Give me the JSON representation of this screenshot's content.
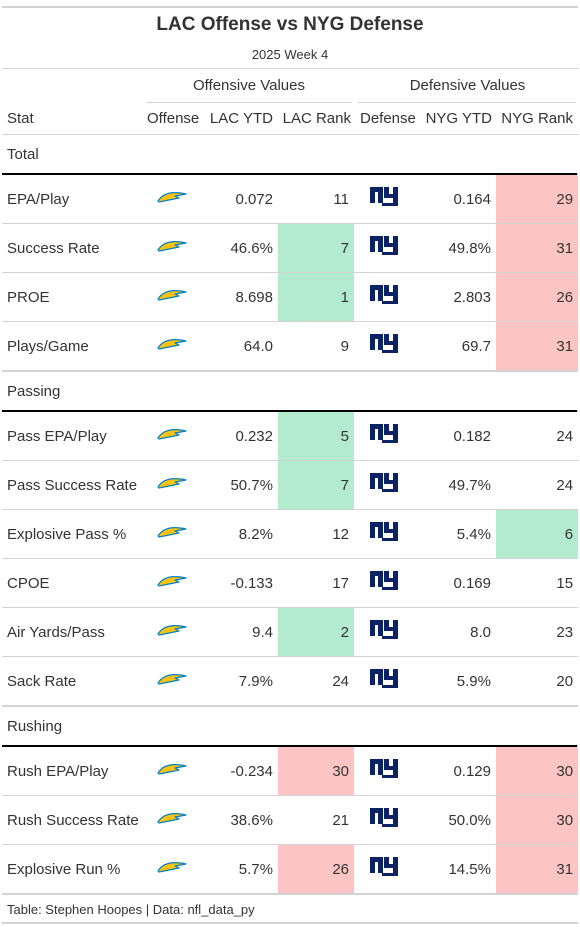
{
  "title": "LAC Offense vs NYG Defense",
  "subtitle": "2025 Week 4",
  "spanners": {
    "offense": "Offensive Values",
    "defense": "Defensive Values"
  },
  "columns": {
    "stat": "Stat",
    "offense": "Offense",
    "lac_ytd": "LAC YTD",
    "lac_rank": "LAC Rank",
    "defense": "Defense",
    "nyg_ytd": "NYG YTD",
    "nyg_rank": "NYG Rank"
  },
  "logos": {
    "offense": "chargers-bolt-icon",
    "defense": "giants-ny-logo-icon",
    "bolt_color": "#ffc20e",
    "bolt_outline": "#0080c6",
    "ny_color": "#0b2265"
  },
  "colors": {
    "good": "#b3ebcf",
    "bad": "#fdc4c4"
  },
  "groups": [
    {
      "name": "Total",
      "rows": [
        {
          "stat": "EPA/Play",
          "lac_ytd": "0.072",
          "lac_rank": "11",
          "lac_rank_status": "",
          "nyg_ytd": "0.164",
          "nyg_rank": "29",
          "nyg_rank_status": "bad"
        },
        {
          "stat": "Success Rate",
          "lac_ytd": "46.6%",
          "lac_rank": "7",
          "lac_rank_status": "good",
          "nyg_ytd": "49.8%",
          "nyg_rank": "31",
          "nyg_rank_status": "bad"
        },
        {
          "stat": "PROE",
          "lac_ytd": "8.698",
          "lac_rank": "1",
          "lac_rank_status": "good",
          "nyg_ytd": "2.803",
          "nyg_rank": "26",
          "nyg_rank_status": "bad"
        },
        {
          "stat": "Plays/Game",
          "lac_ytd": "64.0",
          "lac_rank": "9",
          "lac_rank_status": "",
          "nyg_ytd": "69.7",
          "nyg_rank": "31",
          "nyg_rank_status": "bad"
        }
      ]
    },
    {
      "name": "Passing",
      "rows": [
        {
          "stat": "Pass EPA/Play",
          "lac_ytd": "0.232",
          "lac_rank": "5",
          "lac_rank_status": "good",
          "nyg_ytd": "0.182",
          "nyg_rank": "24",
          "nyg_rank_status": ""
        },
        {
          "stat": "Pass Success Rate",
          "lac_ytd": "50.7%",
          "lac_rank": "7",
          "lac_rank_status": "good",
          "nyg_ytd": "49.7%",
          "nyg_rank": "24",
          "nyg_rank_status": ""
        },
        {
          "stat": "Explosive Pass %",
          "lac_ytd": "8.2%",
          "lac_rank": "12",
          "lac_rank_status": "",
          "nyg_ytd": "5.4%",
          "nyg_rank": "6",
          "nyg_rank_status": "good"
        },
        {
          "stat": "CPOE",
          "lac_ytd": "-0.133",
          "lac_rank": "17",
          "lac_rank_status": "",
          "nyg_ytd": "0.169",
          "nyg_rank": "15",
          "nyg_rank_status": ""
        },
        {
          "stat": "Air Yards/Pass",
          "lac_ytd": "9.4",
          "lac_rank": "2",
          "lac_rank_status": "good",
          "nyg_ytd": "8.0",
          "nyg_rank": "23",
          "nyg_rank_status": ""
        },
        {
          "stat": "Sack Rate",
          "lac_ytd": "7.9%",
          "lac_rank": "24",
          "lac_rank_status": "",
          "nyg_ytd": "5.9%",
          "nyg_rank": "20",
          "nyg_rank_status": ""
        }
      ]
    },
    {
      "name": "Rushing",
      "rows": [
        {
          "stat": "Rush EPA/Play",
          "lac_ytd": "-0.234",
          "lac_rank": "30",
          "lac_rank_status": "bad",
          "nyg_ytd": "0.129",
          "nyg_rank": "30",
          "nyg_rank_status": "bad"
        },
        {
          "stat": "Rush Success Rate",
          "lac_ytd": "38.6%",
          "lac_rank": "21",
          "lac_rank_status": "",
          "nyg_ytd": "50.0%",
          "nyg_rank": "30",
          "nyg_rank_status": "bad"
        },
        {
          "stat": "Explosive Run %",
          "lac_ytd": "5.7%",
          "lac_rank": "26",
          "lac_rank_status": "bad",
          "nyg_ytd": "14.5%",
          "nyg_rank": "31",
          "nyg_rank_status": "bad"
        }
      ]
    }
  ],
  "source_note": "Table: Stephen Hoopes | Data: nfl_data_py"
}
